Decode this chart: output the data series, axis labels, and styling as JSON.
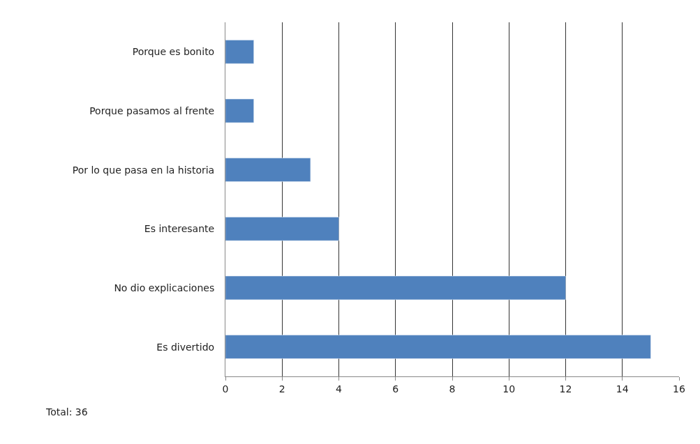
{
  "chart_data": {
    "type": "bar",
    "orientation": "horizontal",
    "categories": [
      "Porque es bonito",
      "Porque pasamos al frente",
      "Por lo que pasa en la historia",
      "Es interesante",
      "No dio explicaciones",
      "Es divertido"
    ],
    "values": [
      1,
      1,
      3,
      4,
      12,
      15
    ],
    "color": "#4f81bd",
    "xlim": [
      0,
      16
    ],
    "xticks": [
      0,
      2,
      4,
      6,
      8,
      10,
      12,
      14,
      16
    ],
    "grid": "x",
    "annotations": [
      "Total: 36"
    ]
  }
}
